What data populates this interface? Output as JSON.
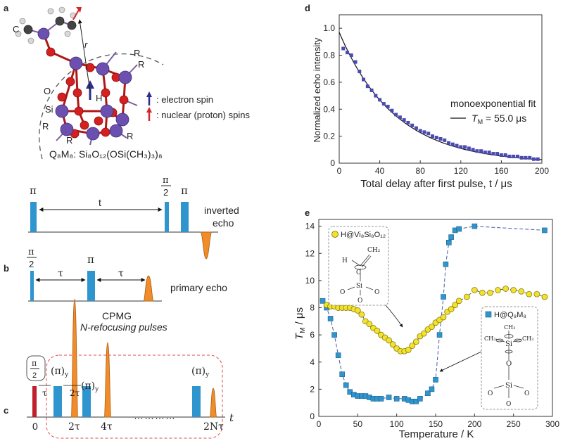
{
  "panels": {
    "a": {
      "label": "a",
      "atom_labels": {
        "c": "C",
        "r": "r",
        "o": "O",
        "h": "H",
        "si": "Si",
        "r1": "R",
        "r2": "R",
        "r3": "R",
        "r4": "R",
        "r5": "R"
      },
      "legend": [
        {
          "text": ": electron spin",
          "color": "#2d2d8a"
        },
        {
          "text": ": nuclear (proton) spins",
          "color": "#d62728"
        }
      ],
      "formula": "Q₈M₈: Si₈O₁₂(OSi(CH₃)₃)₈"
    },
    "b": {
      "label": "b",
      "inverted": {
        "pi1": "π",
        "t": "t",
        "half_num": "π",
        "half_den": "2",
        "pi2": "π",
        "echo_line1": "inverted",
        "echo_line2": "echo"
      },
      "primary": {
        "half_num": "π",
        "half_den": "2",
        "tau1": "τ",
        "pi": "π",
        "tau2": "τ",
        "echo": "primary echo"
      }
    },
    "c": {
      "label": "c",
      "title_line1": "CPMG",
      "title_line2": "N-refocusing pulses",
      "half_num": "π",
      "half_den": "2",
      "pi_y1": "(π)",
      "pi_y2": "(π)",
      "pi_y3": "(π)",
      "sub_y": "y",
      "tau": "τ",
      "two_tau_inner": "2τ",
      "axis_zero": "0",
      "axis_2tau": "2τ",
      "axis_4tau": "4τ",
      "axis_2ntau": "2Nτ",
      "axis_t": "t",
      "dots": "…………"
    },
    "d": {
      "label": "d",
      "ylabel": "Normalized echo intensity",
      "xlabel": "Total delay after first pulse, t / μs",
      "annot_line1": "monoexponential fit",
      "annot_tm": "T",
      "annot_sub": "M",
      "annot_value": " = 55.0 μs"
    },
    "e": {
      "label": "e",
      "ylabel_main": "T",
      "ylabel_sub": "M",
      "ylabel_unit": " / μs",
      "xlabel": "Temperature / K",
      "legend_yellow": "H@Vi₈Si₈O₁₂",
      "legend_blue": "H@Q₈M₈",
      "inset_yellow": {
        "h": "H",
        "c": "C",
        "ch2": "CH₂",
        "si": "Si",
        "o1": "O",
        "o2": "O",
        "o3": "O"
      },
      "inset_blue": {
        "ch3a": "CH₃",
        "ch3b": "CH₃",
        "ch3c": "CH₃",
        "si": "Si",
        "o1": "O",
        "si2": "Si",
        "o2": "O",
        "o3": "O",
        "o4": "O"
      }
    }
  },
  "chart_data": [
    {
      "type": "scatter",
      "panel": "d",
      "xlabel": "Total delay after first pulse, t / μs",
      "ylabel": "Normalized echo intensity",
      "xlim": [
        0,
        200
      ],
      "ylim": [
        0,
        1.1
      ],
      "xticks": [
        0,
        40,
        80,
        120,
        160,
        200
      ],
      "yticks": [
        0,
        0.2,
        0.4,
        0.6,
        0.8,
        1.0
      ],
      "grid": false,
      "series": [
        {
          "name": "",
          "color": "#4a4ab0",
          "x": [
            4,
            8,
            12,
            16,
            20,
            24,
            28,
            32,
            36,
            40,
            44,
            48,
            52,
            56,
            60,
            64,
            68,
            72,
            76,
            80,
            84,
            88,
            92,
            96,
            100,
            104,
            108,
            112,
            116,
            120,
            124,
            128,
            132,
            136,
            140,
            144,
            148,
            152,
            156,
            160,
            164,
            168,
            172,
            176,
            180,
            184,
            188,
            192,
            196
          ],
          "y": [
            0.85,
            0.82,
            0.8,
            0.75,
            0.68,
            0.62,
            0.57,
            0.54,
            0.5,
            0.47,
            0.44,
            0.42,
            0.39,
            0.36,
            0.34,
            0.32,
            0.3,
            0.28,
            0.26,
            0.24,
            0.23,
            0.22,
            0.2,
            0.19,
            0.18,
            0.17,
            0.15,
            0.14,
            0.13,
            0.12,
            0.12,
            0.11,
            0.1,
            0.09,
            0.09,
            0.08,
            0.08,
            0.07,
            0.07,
            0.06,
            0.06,
            0.05,
            0.05,
            0.05,
            0.04,
            0.04,
            0.04,
            0.03,
            0.03
          ]
        }
      ],
      "fit": {
        "label": "monoexponential fit",
        "A": 0.97,
        "tau_us": 55.0,
        "color": "#111111"
      }
    },
    {
      "type": "scatter",
      "panel": "e",
      "xlabel": "Temperature / K",
      "ylabel": "T_M / μs",
      "xlim": [
        0,
        300
      ],
      "ylim": [
        0,
        14.5
      ],
      "xticks": [
        0,
        50,
        100,
        150,
        200,
        250,
        300
      ],
      "yticks": [
        0,
        2,
        4,
        6,
        8,
        10,
        12,
        14
      ],
      "grid": false,
      "series": [
        {
          "name": "H@Vi₈Si₈O₁₂",
          "color": "#f2e22e",
          "marker": "circle",
          "x": [
            10,
            15,
            20,
            25,
            30,
            35,
            40,
            45,
            50,
            55,
            60,
            65,
            70,
            75,
            80,
            85,
            90,
            95,
            100,
            105,
            110,
            115,
            120,
            125,
            130,
            135,
            140,
            145,
            150,
            155,
            160,
            165,
            170,
            175,
            180,
            190,
            200,
            210,
            220,
            230,
            240,
            250,
            260,
            270,
            280,
            290
          ],
          "y": [
            8.2,
            8.1,
            8.1,
            8.0,
            8.0,
            8.0,
            8.0,
            7.9,
            7.8,
            7.5,
            7.0,
            6.8,
            6.5,
            6.3,
            6.0,
            5.8,
            5.6,
            5.3,
            5.0,
            4.8,
            4.8,
            4.9,
            5.2,
            5.5,
            5.9,
            6.1,
            6.4,
            6.6,
            6.9,
            7.1,
            7.3,
            7.7,
            7.9,
            8.2,
            8.5,
            8.8,
            9.3,
            9.1,
            9.1,
            9.3,
            9.4,
            9.3,
            9.2,
            9.0,
            9.0,
            8.8
          ]
        },
        {
          "name": "H@Q₈M₈",
          "color": "#2e95cf",
          "marker": "square",
          "x": [
            5,
            10,
            15,
            20,
            25,
            30,
            35,
            40,
            45,
            50,
            55,
            60,
            65,
            70,
            75,
            80,
            90,
            100,
            110,
            115,
            120,
            125,
            130,
            140,
            145,
            150,
            155,
            160,
            163,
            167,
            170,
            175,
            180,
            200,
            290
          ],
          "y": [
            8.5,
            8.0,
            7.2,
            6.0,
            4.5,
            3.1,
            2.3,
            1.8,
            1.6,
            1.5,
            1.5,
            1.5,
            1.4,
            1.3,
            1.3,
            1.3,
            1.4,
            1.3,
            1.3,
            1.2,
            1.1,
            1.1,
            1.3,
            1.7,
            2.0,
            2.7,
            6.0,
            8.8,
            11.2,
            12.8,
            13.2,
            13.7,
            13.8,
            14.0,
            13.7
          ]
        }
      ]
    }
  ]
}
